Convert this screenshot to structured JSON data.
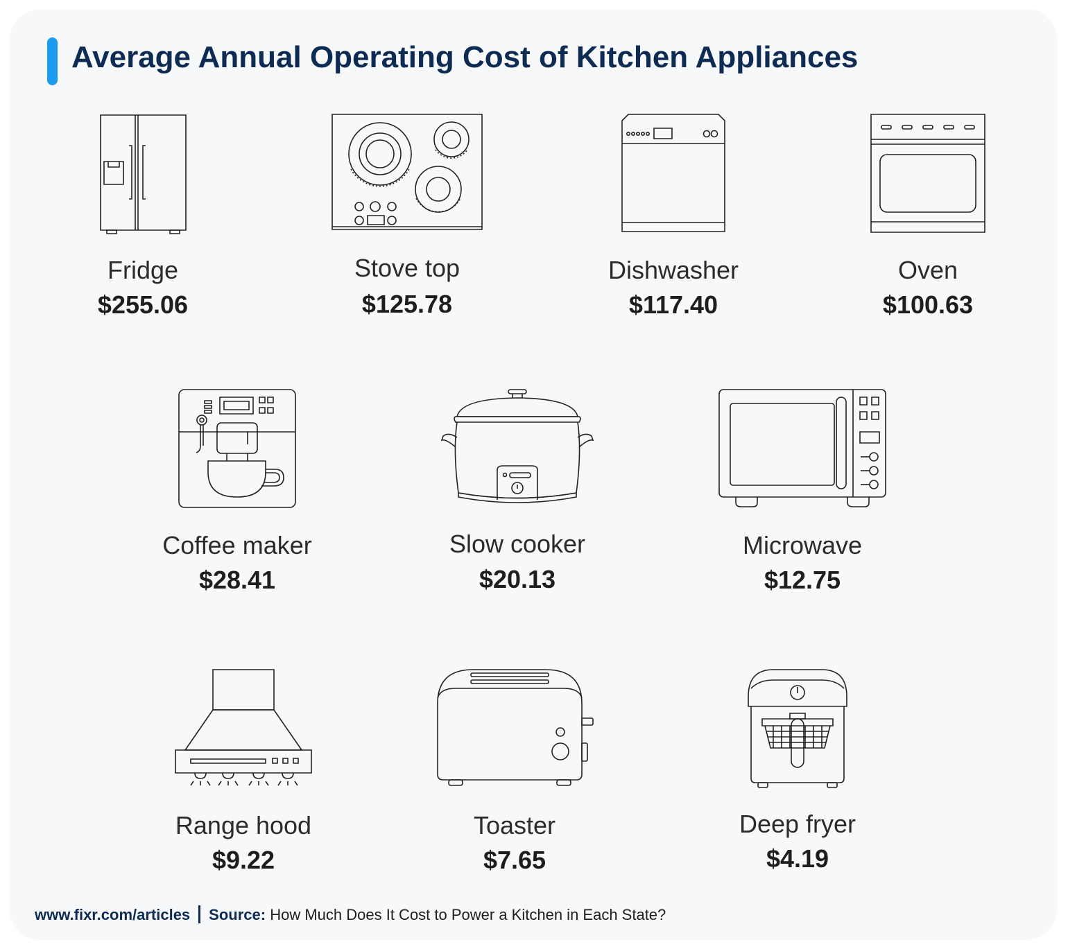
{
  "title": "Average Annual Operating Cost of Kitchen Appliances",
  "appliances": [
    {
      "name": "Fridge",
      "cost": "$255.06",
      "icon": "fridge-icon"
    },
    {
      "name": "Stove top",
      "cost": "$125.78",
      "icon": "stove-top-icon"
    },
    {
      "name": "Dishwasher",
      "cost": "$117.40",
      "icon": "dishwasher-icon"
    },
    {
      "name": "Oven",
      "cost": "$100.63",
      "icon": "oven-icon"
    },
    {
      "name": "Coffee maker",
      "cost": "$28.41",
      "icon": "coffee-maker-icon"
    },
    {
      "name": "Slow cooker",
      "cost": "$20.13",
      "icon": "slow-cooker-icon"
    },
    {
      "name": "Microwave",
      "cost": "$12.75",
      "icon": "microwave-icon"
    },
    {
      "name": "Range hood",
      "cost": "$9.22",
      "icon": "range-hood-icon"
    },
    {
      "name": "Toaster",
      "cost": "$7.65",
      "icon": "toaster-icon"
    },
    {
      "name": "Deep fryer",
      "cost": "$4.19",
      "icon": "deep-fryer-icon"
    }
  ],
  "footer": {
    "site": "www.fixr.com/articles",
    "source_label": "Source:",
    "source_text": "How Much Does It Cost to Power a Kitchen in Each State?"
  },
  "colors": {
    "accent": "#1a9bf0",
    "title": "#0e2b54",
    "text": "#1e1e1e",
    "background": "#f7f8fa"
  }
}
